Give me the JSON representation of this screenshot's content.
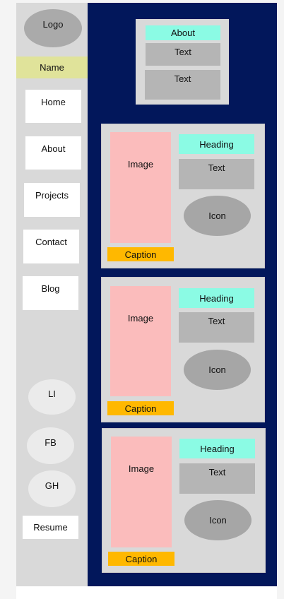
{
  "sidebar": {
    "logo": "Logo",
    "name": "Name",
    "nav": [
      "Home",
      "About",
      "Projects",
      "Contact",
      "Blog"
    ],
    "social": [
      "LI",
      "FB",
      "GH"
    ],
    "resume": "Resume"
  },
  "about_box": {
    "heading": "About",
    "texts": [
      "Text",
      "Text"
    ]
  },
  "cards": [
    {
      "image": "Image",
      "caption": "Caption",
      "heading": "Heading",
      "text": "Text",
      "icon": "Icon"
    },
    {
      "image": "Image",
      "caption": "Caption",
      "heading": "Heading",
      "text": "Text",
      "icon": "Icon"
    },
    {
      "image": "Image",
      "caption": "Caption",
      "heading": "Heading",
      "text": "Text",
      "icon": "Icon"
    }
  ],
  "colors": {
    "sidebar_bg": "#d9d9d9",
    "main_bg": "#02175b",
    "name_bg": "#e0e39a",
    "heading_bg": "#8bfbe4",
    "image_bg": "#fbbcbc",
    "caption_bg": "#ffb800",
    "text_bg": "#b5b5b5",
    "icon_bg": "#a6a6a6"
  }
}
